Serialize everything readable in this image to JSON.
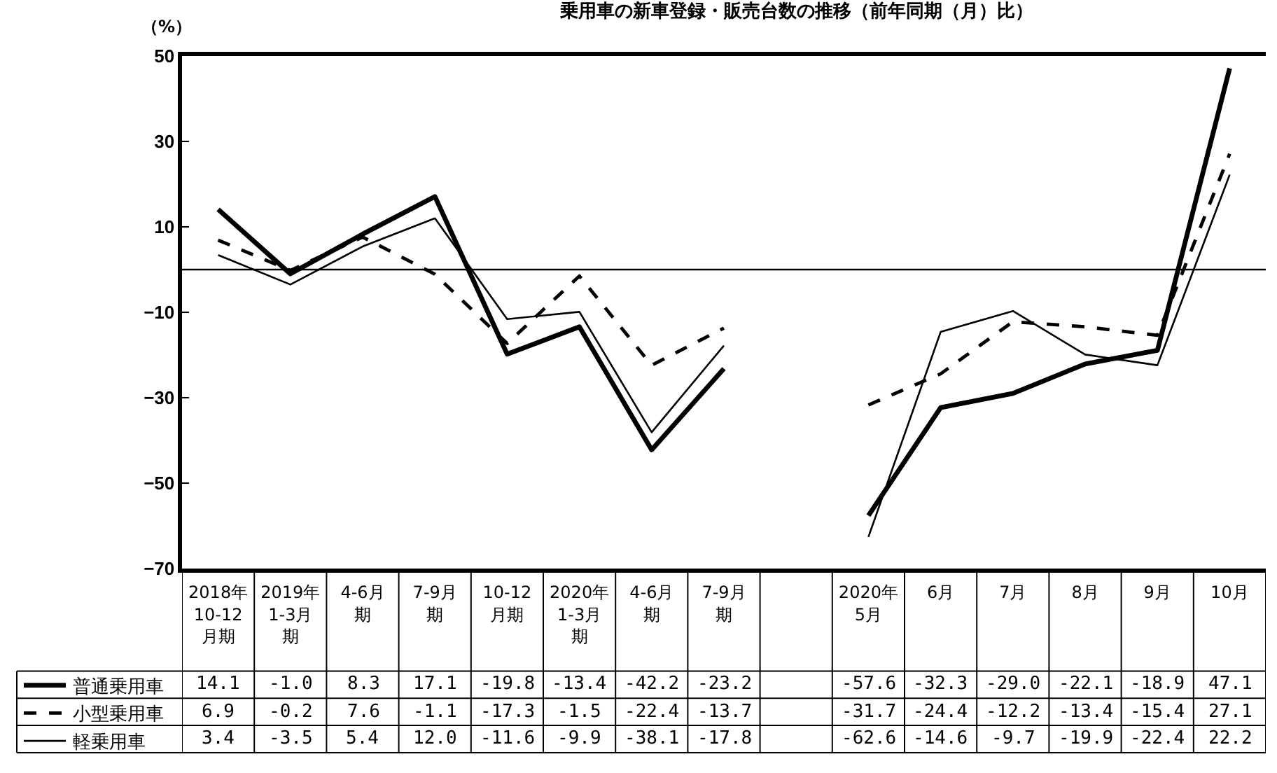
{
  "chart_data": {
    "type": "line",
    "title": "乗用車の新車登録・販売台数の推移（前年同期（月）比）",
    "ylabel": "（%）",
    "categories": [
      "2018年10-12月期",
      "2019年1-3月期",
      "4-6月期",
      "7-9月期",
      "10-12月期",
      "2020年1-3月期",
      "4-6月期",
      "7-9月期",
      null,
      "2020年5月",
      "6月",
      "7月",
      "8月",
      "9月",
      "10月"
    ],
    "series": [
      {
        "name": "普通乗用車",
        "color": "#000000",
        "line_style": "solid",
        "values": [
          14.1,
          -1.0,
          8.3,
          17.1,
          -19.8,
          -13.4,
          -42.2,
          -23.2,
          null,
          -57.6,
          -32.3,
          -29.0,
          -22.1,
          -18.9,
          47.1
        ],
        "value_labels": [
          "14.1",
          "-1.0",
          "8.3",
          "17.1",
          "-19.8",
          "-13.4",
          "-42.2",
          "-23.2",
          null,
          "-57.6",
          "-32.3",
          "-29.0",
          "-22.1",
          "-18.9",
          "47.1"
        ]
      },
      {
        "name": "小型乗用車",
        "color": "#000000",
        "line_style": "dashed",
        "values": [
          6.9,
          -0.2,
          7.6,
          -1.1,
          -17.3,
          -1.5,
          -22.4,
          -13.7,
          null,
          -31.7,
          -24.4,
          -12.2,
          -13.4,
          -15.4,
          27.1
        ],
        "value_labels": [
          "6.9",
          "-0.2",
          "7.6",
          "-1.1",
          "-17.3",
          "-1.5",
          "-22.4",
          "-13.7",
          null,
          "-31.7",
          "-24.4",
          "-12.2",
          "-13.4",
          "-15.4",
          "27.1"
        ]
      },
      {
        "name": "軽乗用車",
        "color": "#000000",
        "line_style": "solid",
        "values": [
          3.4,
          -3.5,
          5.4,
          12.0,
          -11.6,
          -9.9,
          -38.1,
          -17.8,
          null,
          -62.6,
          -14.6,
          -9.7,
          -19.9,
          -22.4,
          22.2
        ],
        "value_labels": [
          "3.4",
          "-3.5",
          "5.4",
          "12.0",
          "-11.6",
          "-9.9",
          "-38.1",
          "-17.8",
          null,
          "-62.6",
          "-14.6",
          "-9.7",
          "-19.9",
          "-22.4",
          "22.2"
        ]
      }
    ],
    "ylim": [
      -70,
      50
    ],
    "yticks": [
      -70,
      -50,
      -30,
      -10,
      10,
      30,
      50
    ],
    "ref_lines": [
      {
        "axis": "y",
        "value": 0,
        "color": "#000000"
      }
    ],
    "legend": "bottom left",
    "marker": "none"
  }
}
